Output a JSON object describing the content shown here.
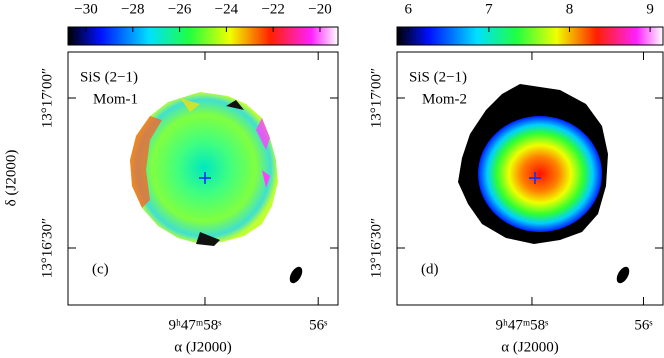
{
  "chart_data": [
    {
      "type": "image",
      "colorbar": {
        "lim": [
          -30.77,
          -19.23
        ],
        "ticks": [
          {
            "value": -30,
            "label": "−30"
          },
          {
            "value": -28,
            "label": "−28"
          },
          {
            "value": -26,
            "label": "−26"
          },
          {
            "value": -24,
            "label": "−24"
          },
          {
            "value": -22,
            "label": "−22"
          },
          {
            "value": -20,
            "label": "−20"
          }
        ]
      },
      "xlim": [
        60.42,
        55.65
      ],
      "xticks": [
        {
          "value": 58,
          "label": "9ʰ47ᵐ58ˢ"
        },
        {
          "value": 56,
          "label": "56ˢ"
        }
      ],
      "ylim": [
        18.6,
        69.2
      ],
      "yticks": [
        {
          "value": 60,
          "label": "13°17′00″"
        },
        {
          "value": 30,
          "label": "13°16′30″"
        }
      ],
      "xlabel": "α (J2000)",
      "ylabel": "δ (J2000)",
      "labels": [
        "SiS (2−1)",
        "Mom-1",
        "(c)"
      ]
    },
    {
      "type": "image",
      "colorbar": {
        "lim": [
          5.86,
          9.16
        ],
        "ticks": [
          6,
          7,
          8,
          9
        ]
      },
      "xlim": [
        60.42,
        55.65
      ],
      "xticks": [
        {
          "value": 58,
          "label": "9ʰ47ᵐ58ˢ"
        },
        {
          "value": 56,
          "label": "56ˢ"
        }
      ],
      "ylim": [
        18.6,
        69.2
      ],
      "yticks": [
        {
          "value": 60,
          "label": "13°17′00″"
        },
        {
          "value": 30,
          "label": "13°16′30″"
        }
      ],
      "xlabel": "α (J2000)",
      "labels": [
        "SiS (2−1)",
        "Mom-2",
        "(d)"
      ]
    }
  ]
}
